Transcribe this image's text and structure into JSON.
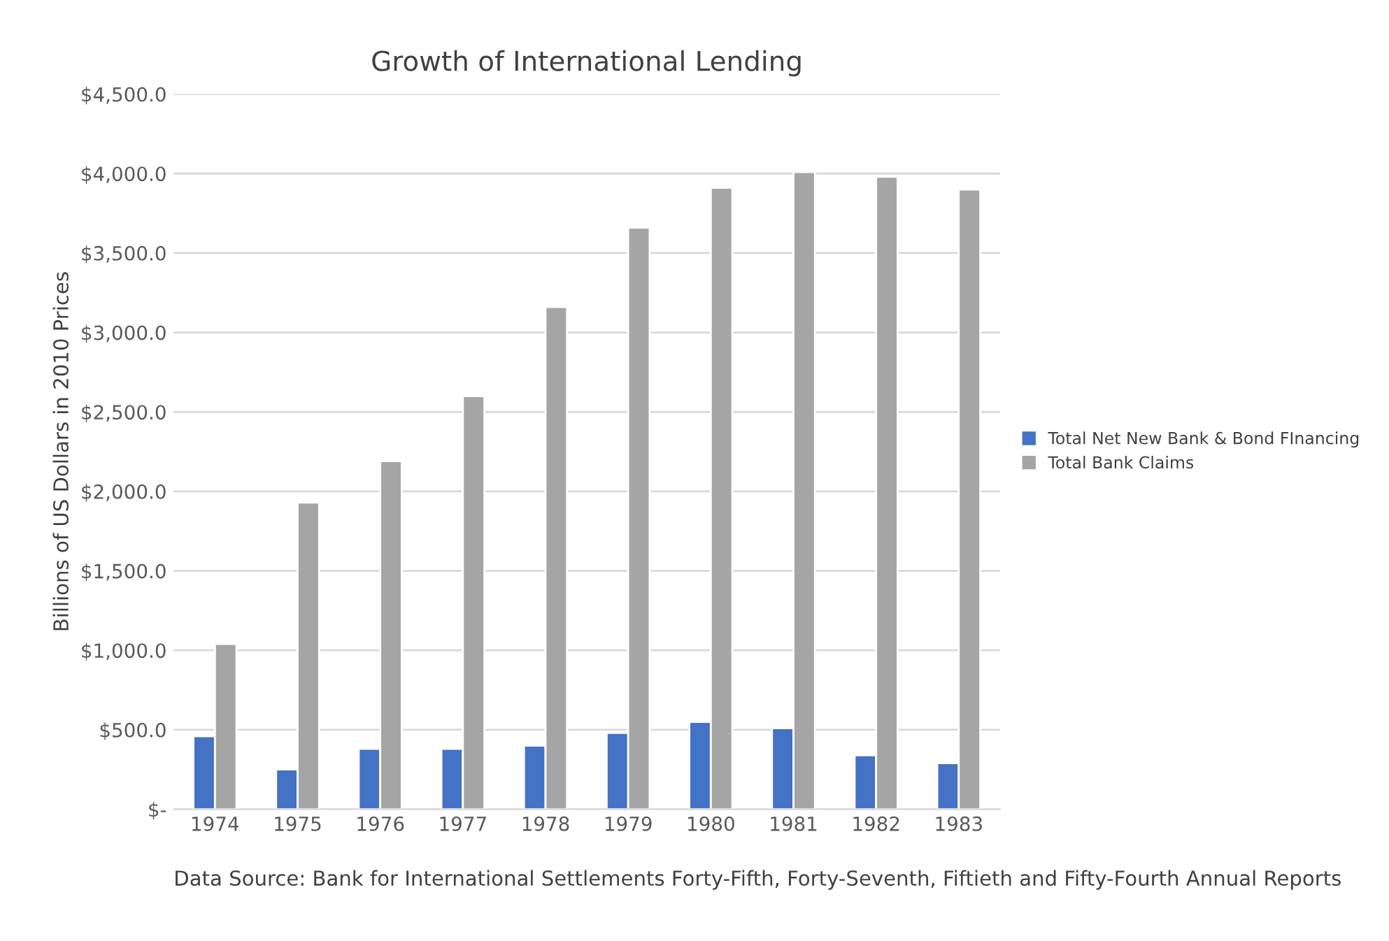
{
  "chart_data": {
    "type": "bar",
    "title": "Growth of International Lending",
    "ylabel": "Billions of US Dollars in 2010 Prices",
    "categories": [
      "1974",
      "1975",
      "1976",
      "1977",
      "1978",
      "1979",
      "1980",
      "1981",
      "1982",
      "1983"
    ],
    "series": [
      {
        "name": "Total Net New Bank & Bond FInancing",
        "color": "#4472c4",
        "values": [
          460,
          250,
          380,
          380,
          400,
          480,
          550,
          510,
          340,
          290
        ]
      },
      {
        "name": "Total Bank Claims",
        "color": "#a5a5a5",
        "values": [
          1040,
          1930,
          2190,
          2600,
          3160,
          3660,
          3910,
          4010,
          3980,
          3900
        ]
      }
    ],
    "ylim": [
      0,
      4500
    ],
    "yticks": [
      {
        "value": 0,
        "label": "$-"
      },
      {
        "value": 500,
        "label": "$500.0"
      },
      {
        "value": 1000,
        "label": "$1,000.0"
      },
      {
        "value": 1500,
        "label": "$1,500.0"
      },
      {
        "value": 2000,
        "label": "$2,000.0"
      },
      {
        "value": 2500,
        "label": "$2,500.0"
      },
      {
        "value": 3000,
        "label": "$3,000.0"
      },
      {
        "value": 3500,
        "label": "$3,500.0"
      },
      {
        "value": 4000,
        "label": "$4,000.0"
      },
      {
        "value": 4500,
        "label": "$4,500.0"
      }
    ],
    "grid": "y",
    "legend": "right",
    "annotations": [
      "Data Source: Bank for International Settlements Forty-Fifth, Forty-Seventh, Fiftieth and Fifty-Fourth Annual Reports"
    ]
  }
}
